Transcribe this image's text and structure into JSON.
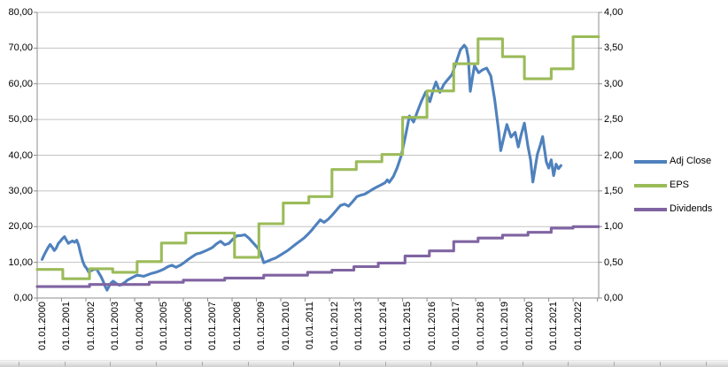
{
  "chart_data": {
    "type": "line",
    "title": "",
    "grid": true,
    "legend_position": "right",
    "x_axis": {
      "range": [
        1999.8,
        2022.85
      ],
      "tick_labels": [
        "01.01.2000",
        "01.01.2001",
        "01.01.2002",
        "01.01.2003",
        "01.01.2004",
        "01.01.2005",
        "01.01.2006",
        "01.01.2007",
        "01.01.2008",
        "01.01.2009",
        "01.01.2010",
        "01.01.2011",
        "01.01.2012",
        "01.01.2013",
        "01.01.2014",
        "01.01.2015",
        "01.01.2016",
        "01.01.2017",
        "01.01.2018",
        "01.01.2019",
        "01.01.2020",
        "01.01.2021",
        "01.01.2022"
      ]
    },
    "left_axis": {
      "range": [
        0,
        80
      ],
      "tick_values": [
        0,
        10,
        20,
        30,
        40,
        50,
        60,
        70,
        80
      ],
      "tick_labels": [
        "0,00",
        "10,00",
        "20,00",
        "30,00",
        "40,00",
        "50,00",
        "60,00",
        "70,00",
        "80,00"
      ]
    },
    "right_axis": {
      "range": [
        0,
        4
      ],
      "tick_values": [
        0,
        0.5,
        1,
        1.5,
        2,
        2.5,
        3,
        3.5,
        4
      ],
      "tick_labels": [
        "0,00",
        "0,50",
        "1,00",
        "1,50",
        "2,00",
        "2,50",
        "3,00",
        "3,50",
        "4,00"
      ]
    },
    "series": [
      {
        "name": "Adj Close",
        "axis": "left",
        "color": "#4F81BD",
        "style": "line",
        "points": [
          [
            2000.0,
            10.8
          ],
          [
            2000.08,
            12.0
          ],
          [
            2000.17,
            13.2
          ],
          [
            2000.25,
            14.2
          ],
          [
            2000.33,
            15.0
          ],
          [
            2000.42,
            14.2
          ],
          [
            2000.5,
            13.3
          ],
          [
            2000.58,
            14.0
          ],
          [
            2000.67,
            15.3
          ],
          [
            2000.75,
            15.9
          ],
          [
            2000.83,
            16.6
          ],
          [
            2000.92,
            17.2
          ],
          [
            2001.0,
            16.2
          ],
          [
            2001.08,
            15.3
          ],
          [
            2001.17,
            15.7
          ],
          [
            2001.25,
            16.0
          ],
          [
            2001.33,
            15.6
          ],
          [
            2001.42,
            16.2
          ],
          [
            2001.5,
            14.8
          ],
          [
            2001.58,
            12.5
          ],
          [
            2001.67,
            10.3
          ],
          [
            2001.75,
            9.0
          ],
          [
            2001.83,
            8.3
          ],
          [
            2001.92,
            7.2
          ],
          [
            2002.0,
            7.6
          ],
          [
            2002.08,
            7.9
          ],
          [
            2002.17,
            8.1
          ],
          [
            2002.25,
            8.0
          ],
          [
            2002.33,
            7.0
          ],
          [
            2002.42,
            6.0
          ],
          [
            2002.5,
            4.8
          ],
          [
            2002.58,
            3.4
          ],
          [
            2002.67,
            2.2
          ],
          [
            2002.75,
            3.3
          ],
          [
            2002.83,
            4.2
          ],
          [
            2002.92,
            4.7
          ],
          [
            2003.0,
            4.3
          ],
          [
            2003.08,
            3.9
          ],
          [
            2003.17,
            3.6
          ],
          [
            2003.25,
            3.7
          ],
          [
            2003.33,
            4.1
          ],
          [
            2003.42,
            4.5
          ],
          [
            2003.5,
            5.0
          ],
          [
            2003.58,
            5.3
          ],
          [
            2003.67,
            5.6
          ],
          [
            2003.75,
            5.9
          ],
          [
            2003.83,
            6.2
          ],
          [
            2003.92,
            6.4
          ],
          [
            2004.0,
            6.3
          ],
          [
            2004.17,
            6.1
          ],
          [
            2004.33,
            6.5
          ],
          [
            2004.5,
            6.9
          ],
          [
            2004.67,
            7.2
          ],
          [
            2004.83,
            7.6
          ],
          [
            2005.0,
            8.1
          ],
          [
            2005.17,
            8.8
          ],
          [
            2005.33,
            9.2
          ],
          [
            2005.5,
            8.6
          ],
          [
            2005.67,
            9.2
          ],
          [
            2005.83,
            9.9
          ],
          [
            2006.0,
            10.8
          ],
          [
            2006.17,
            11.6
          ],
          [
            2006.33,
            12.3
          ],
          [
            2006.5,
            12.6
          ],
          [
            2006.67,
            13.1
          ],
          [
            2006.83,
            13.6
          ],
          [
            2007.0,
            14.2
          ],
          [
            2007.17,
            15.2
          ],
          [
            2007.33,
            15.9
          ],
          [
            2007.5,
            14.9
          ],
          [
            2007.67,
            15.3
          ],
          [
            2007.83,
            16.5
          ],
          [
            2008.0,
            17.4
          ],
          [
            2008.17,
            17.5
          ],
          [
            2008.33,
            17.7
          ],
          [
            2008.5,
            16.7
          ],
          [
            2008.67,
            15.4
          ],
          [
            2008.83,
            14.2
          ],
          [
            2008.95,
            13.0
          ],
          [
            2009.1,
            9.9
          ],
          [
            2009.25,
            10.3
          ],
          [
            2009.42,
            10.8
          ],
          [
            2009.58,
            11.2
          ],
          [
            2009.75,
            11.9
          ],
          [
            2009.92,
            12.6
          ],
          [
            2010.08,
            13.3
          ],
          [
            2010.25,
            14.2
          ],
          [
            2010.42,
            15.1
          ],
          [
            2010.58,
            15.9
          ],
          [
            2010.75,
            16.8
          ],
          [
            2010.92,
            17.9
          ],
          [
            2011.08,
            19.1
          ],
          [
            2011.25,
            20.5
          ],
          [
            2011.42,
            21.9
          ],
          [
            2011.58,
            21.2
          ],
          [
            2011.75,
            22.1
          ],
          [
            2011.92,
            23.3
          ],
          [
            2012.08,
            24.6
          ],
          [
            2012.25,
            25.9
          ],
          [
            2012.42,
            26.3
          ],
          [
            2012.58,
            25.7
          ],
          [
            2012.75,
            27.0
          ],
          [
            2012.92,
            28.4
          ],
          [
            2013.08,
            28.8
          ],
          [
            2013.25,
            29.1
          ],
          [
            2013.42,
            29.8
          ],
          [
            2013.58,
            30.5
          ],
          [
            2013.75,
            31.1
          ],
          [
            2013.92,
            31.7
          ],
          [
            2014.08,
            32.3
          ],
          [
            2014.17,
            33.1
          ],
          [
            2014.25,
            32.4
          ],
          [
            2014.42,
            34.0
          ],
          [
            2014.58,
            36.5
          ],
          [
            2014.75,
            40.0
          ],
          [
            2014.92,
            45.5
          ],
          [
            2015.08,
            51.0
          ],
          [
            2015.25,
            49.3
          ],
          [
            2015.42,
            52.4
          ],
          [
            2015.58,
            55.2
          ],
          [
            2015.75,
            57.7
          ],
          [
            2015.92,
            55.0
          ],
          [
            2016.08,
            58.8
          ],
          [
            2016.17,
            60.5
          ],
          [
            2016.33,
            57.6
          ],
          [
            2016.5,
            59.9
          ],
          [
            2016.67,
            61.3
          ],
          [
            2016.83,
            62.6
          ],
          [
            2017.0,
            66.0
          ],
          [
            2017.17,
            69.5
          ],
          [
            2017.33,
            70.8
          ],
          [
            2017.42,
            70.0
          ],
          [
            2017.5,
            67.2
          ],
          [
            2017.58,
            57.9
          ],
          [
            2017.67,
            61.8
          ],
          [
            2017.75,
            65.1
          ],
          [
            2017.92,
            63.1
          ],
          [
            2018.08,
            63.9
          ],
          [
            2018.25,
            64.4
          ],
          [
            2018.42,
            62.2
          ],
          [
            2018.58,
            55.5
          ],
          [
            2018.75,
            46.5
          ],
          [
            2018.83,
            41.3
          ],
          [
            2018.95,
            44.8
          ],
          [
            2019.08,
            48.6
          ],
          [
            2019.25,
            45.1
          ],
          [
            2019.42,
            46.4
          ],
          [
            2019.55,
            42.3
          ],
          [
            2019.67,
            45.8
          ],
          [
            2019.8,
            49.0
          ],
          [
            2019.95,
            42.4
          ],
          [
            2020.05,
            38.8
          ],
          [
            2020.15,
            32.5
          ],
          [
            2020.33,
            40.2
          ],
          [
            2020.45,
            42.8
          ],
          [
            2020.55,
            45.2
          ],
          [
            2020.7,
            38.1
          ],
          [
            2020.8,
            36.4
          ],
          [
            2020.9,
            38.7
          ],
          [
            2021.0,
            34.3
          ],
          [
            2021.1,
            37.5
          ],
          [
            2021.2,
            36.2
          ],
          [
            2021.3,
            37.1
          ]
        ]
      },
      {
        "name": "EPS",
        "axis": "right",
        "color": "#9BBB59",
        "style": "step",
        "points": [
          [
            2000.0,
            0.4
          ],
          [
            2000.85,
            0.27
          ],
          [
            2001.95,
            0.41
          ],
          [
            2002.9,
            0.36
          ],
          [
            2003.9,
            0.51
          ],
          [
            2004.9,
            0.77
          ],
          [
            2005.9,
            0.91
          ],
          [
            2007.9,
            0.57
          ],
          [
            2008.9,
            1.04
          ],
          [
            2009.9,
            1.33
          ],
          [
            2010.95,
            1.42
          ],
          [
            2011.9,
            1.8
          ],
          [
            2012.9,
            1.91
          ],
          [
            2013.95,
            2.01
          ],
          [
            2014.8,
            2.53
          ],
          [
            2015.8,
            2.9
          ],
          [
            2016.9,
            3.28
          ],
          [
            2017.9,
            3.63
          ],
          [
            2018.9,
            3.38
          ],
          [
            2019.8,
            3.07
          ],
          [
            2020.9,
            3.21
          ],
          [
            2021.8,
            3.66
          ]
        ],
        "end_x": 2022.85
      },
      {
        "name": "Dividends",
        "axis": "right",
        "color": "#8064A2",
        "style": "step",
        "points": [
          [
            2000.0,
            0.16
          ],
          [
            2001.95,
            0.19
          ],
          [
            2004.4,
            0.22
          ],
          [
            2005.8,
            0.25
          ],
          [
            2007.5,
            0.28
          ],
          [
            2009.1,
            0.32
          ],
          [
            2010.9,
            0.36
          ],
          [
            2011.9,
            0.39
          ],
          [
            2012.8,
            0.44
          ],
          [
            2013.8,
            0.49
          ],
          [
            2014.9,
            0.59
          ],
          [
            2015.9,
            0.66
          ],
          [
            2016.9,
            0.79
          ],
          [
            2017.9,
            0.84
          ],
          [
            2018.9,
            0.88
          ],
          [
            2019.95,
            0.92
          ],
          [
            2020.9,
            0.98
          ],
          [
            2021.8,
            1.0
          ]
        ],
        "end_x": 2022.85
      }
    ]
  },
  "legend": {
    "items": [
      {
        "label": "Adj Close"
      },
      {
        "label": "EPS"
      },
      {
        "label": "Dividends"
      }
    ]
  },
  "colors": {
    "gridline": "#C3C3C3",
    "axis": "#8C8C8C",
    "background": "#FFFFFF"
  }
}
